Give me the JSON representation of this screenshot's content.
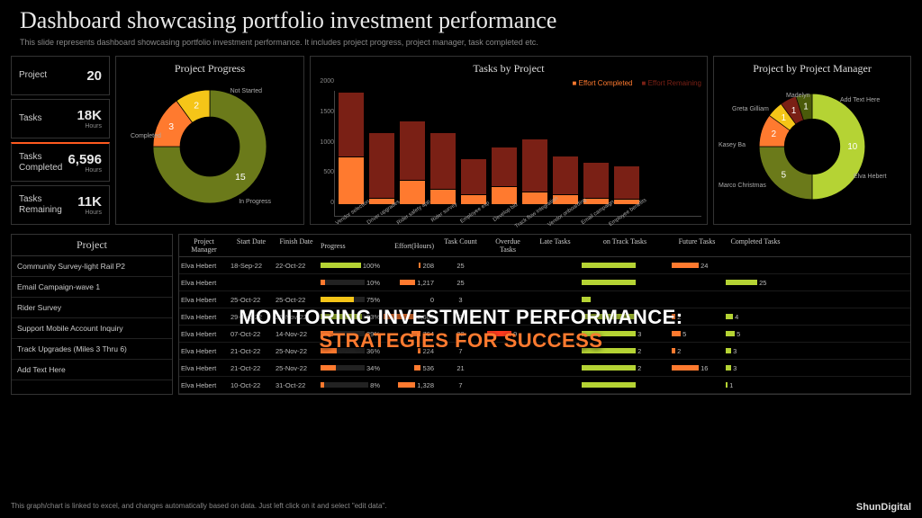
{
  "header": {
    "title": "Dashboard showcasing portfolio investment performance",
    "subtitle": "This slide represents dashboard showcasing portfolio investment performance. It includes project progress, project manager, task completed etc."
  },
  "colors": {
    "accent": "#ff5a1f",
    "green": "#b5d334",
    "yellow": "#f5c518",
    "orange": "#ff7a2f",
    "darkred": "#7a2015",
    "olive": "#6b7a1a",
    "grid": "#333333",
    "bg": "#000000"
  },
  "stats": [
    {
      "label": "Project",
      "value": "20",
      "sub": "",
      "highlight": false
    },
    {
      "label": "Tasks",
      "value": "18K",
      "sub": "Hours",
      "highlight": false
    },
    {
      "label": "Tasks Completed",
      "value": "6,596",
      "sub": "Hours",
      "highlight": true
    },
    {
      "label": "Tasks Remaining",
      "value": "11K",
      "sub": "Hours",
      "highlight": false
    }
  ],
  "progress_chart": {
    "title": "Project Progress",
    "type": "donut",
    "segments": [
      {
        "label": "In Progress",
        "value": 15,
        "color": "#6b7a1a"
      },
      {
        "label": "Completed",
        "value": 3,
        "color": "#ff7a2f"
      },
      {
        "label": "Not Started",
        "value": 2,
        "color": "#f5c518"
      }
    ]
  },
  "tasks_chart": {
    "title": "Tasks by Project",
    "type": "stacked-bar",
    "legend": [
      {
        "label": "Effort Completed",
        "color": "#ff7a2f"
      },
      {
        "label": "Effort Remaining",
        "color": "#7a2015"
      }
    ],
    "ymax": 2000,
    "ytick": 500,
    "bars": [
      {
        "label": "Vendor selection",
        "completed": 800,
        "remaining": 1100
      },
      {
        "label": "Driver upgrades",
        "completed": 100,
        "remaining": 1100
      },
      {
        "label": "Rider safety app",
        "completed": 400,
        "remaining": 1000
      },
      {
        "label": "Rider survey",
        "completed": 250,
        "remaining": 950
      },
      {
        "label": "Employee exp",
        "completed": 150,
        "remaining": 600
      },
      {
        "label": "Develop bid",
        "completed": 300,
        "remaining": 650
      },
      {
        "label": "Track flow integration",
        "completed": 200,
        "remaining": 900
      },
      {
        "label": "Vendor onboarding",
        "completed": 150,
        "remaining": 650
      },
      {
        "label": "Email campaign",
        "completed": 100,
        "remaining": 600
      },
      {
        "label": "Employee benefits",
        "completed": 80,
        "remaining": 550
      }
    ]
  },
  "manager_chart": {
    "title": "Project by Project Manager",
    "type": "donut",
    "segments": [
      {
        "label": "Elva Hebert",
        "value": 10,
        "color": "#b5d334"
      },
      {
        "label": "Marco Christmas",
        "value": 5,
        "color": "#6b7a1a"
      },
      {
        "label": "Kasey Ba",
        "value": 2,
        "color": "#ff7a2f"
      },
      {
        "label": "Greta Gilliam",
        "value": 1,
        "color": "#f5c518"
      },
      {
        "label": "Madelyn",
        "value": 1,
        "color": "#7a2015"
      },
      {
        "label": "Add Text Here",
        "value": 1,
        "color": "#4a5a0a"
      }
    ]
  },
  "project_list": {
    "header": "Project",
    "rows": [
      "Community Survey-light Rail P2",
      "Email Campaign-wave 1",
      "Rider Survey",
      "Support Mobile Account Inquiry",
      "Track Upgrades (Miles 3 Thru 6)",
      "Add Text Here"
    ]
  },
  "table": {
    "columns": [
      "Project Manager",
      "Start Date",
      "Finish Date",
      "Progress",
      "Effort(Hours)",
      "Task Count",
      "Overdue Tasks",
      "Late Tasks",
      "on Track Tasks",
      "Future Tasks",
      "Completed Tasks"
    ],
    "rows": [
      {
        "mgr": "Elva Hebert",
        "start": "18-Sep-22",
        "finish": "22-Oct-22",
        "prog": 100,
        "pcolor": "#b5d334",
        "effort": 208,
        "tc": 25,
        "od": 0,
        "lt": 0,
        "ot": 0,
        "ft": 24,
        "ct": 0
      },
      {
        "mgr": "Elva Hebert",
        "start": "",
        "finish": "",
        "prog": 10,
        "pcolor": "#ff7a2f",
        "effort": 1217,
        "tc": 25,
        "od": 0,
        "lt": 0,
        "ot": 0,
        "ft": 0,
        "ct": 25
      },
      {
        "mgr": "Elva Hebert",
        "start": "25-Oct-22",
        "finish": "25-Oct-22",
        "prog": 75,
        "pcolor": "#f5c518",
        "effort": 0,
        "tc": 3,
        "od": 0,
        "lt": 0,
        "ot": 0,
        "ft": 0,
        "ct": 0
      },
      {
        "mgr": "Elva Hebert",
        "start": "29-Aug-22",
        "finish": "25-Nov-22",
        "prog": 93,
        "pcolor": "#b5d334",
        "effort": 2608,
        "tc": 7,
        "od": 0,
        "lt": 0,
        "ot": 0,
        "ft": 2,
        "ct": 4
      },
      {
        "mgr": "Elva Hebert",
        "start": "07-Oct-22",
        "finish": "14-Nov-22",
        "prog": 29,
        "pcolor": "#ff7a2f",
        "effort": 764,
        "tc": 22,
        "od": 9,
        "lt": 0,
        "ot": 3,
        "ft": 5,
        "ct": 5
      },
      {
        "mgr": "Elva Hebert",
        "start": "21-Oct-22",
        "finish": "25-Nov-22",
        "prog": 36,
        "pcolor": "#ff7a2f",
        "effort": 224,
        "tc": 7,
        "od": 0,
        "lt": 0,
        "ot": 2,
        "ft": 2,
        "ct": 3
      },
      {
        "mgr": "Elva Hebert",
        "start": "21-Oct-22",
        "finish": "25-Nov-22",
        "prog": 34,
        "pcolor": "#ff7a2f",
        "effort": 536,
        "tc": 21,
        "od": 0,
        "lt": 0,
        "ot": 2,
        "ft": 16,
        "ct": 3
      },
      {
        "mgr": "Elva Hebert",
        "start": "10-Oct-22",
        "finish": "31-Oct-22",
        "prog": 8,
        "pcolor": "#ff7a2f",
        "effort": 1328,
        "tc": 7,
        "od": 0,
        "lt": 0,
        "ot": 0,
        "ft": 0,
        "ct": 1
      }
    ]
  },
  "overlay": {
    "line1": "MONITORING INVESTMENT PERFORMANCE:",
    "line2": "STRATEGIES FOR SUCCESS"
  },
  "footer": {
    "note": "This graph/chart is linked to excel, and changes automatically based on data. Just left click on it and select \"edit data\".",
    "brand": "ShunDigital"
  }
}
